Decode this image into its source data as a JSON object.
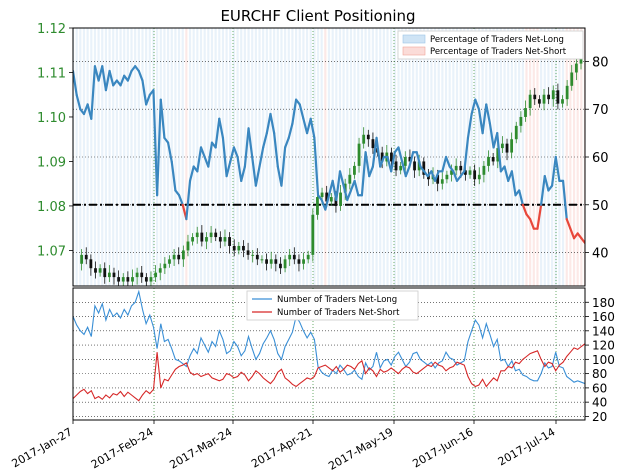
{
  "chart_data": {
    "title": "EURCHF Client Positioning",
    "type": "line",
    "x_ticks": [
      "2017-Jan-27",
      "2017-Feb-24",
      "2017-Mar-24",
      "2017-Apr-21",
      "2017-May-19",
      "2017-Jun-16",
      "2017-Jul-14"
    ],
    "top_panel": {
      "price_axis": {
        "ylim": [
          1.062,
          1.12
        ],
        "ticks": [
          "1.07",
          "1.08",
          "1.09",
          "1.10",
          "1.11",
          "1.12"
        ]
      },
      "percent_axis": {
        "ylim": [
          33,
          87
        ],
        "ticks": [
          "40",
          "50",
          "60",
          "70",
          "80"
        ]
      },
      "reference_line": 50,
      "legend": {
        "position": "top-right",
        "items": [
          "Percentage of Traders Net-Long",
          "Percentage of Traders Net-Short"
        ]
      },
      "colors": {
        "long": "#3a87c0",
        "short": "#e8473a",
        "long_fill": "#cfe4f5",
        "short_fill": "#fbdcd8",
        "up_candle": "#2e8b2e",
        "down_candle": "#111111",
        "price_axis": "#2e8b2e"
      },
      "series": [
        {
          "name": "Percentage of Traders Net-Long",
          "values": [
            78,
            73,
            70,
            69,
            71,
            68,
            79,
            76,
            79,
            74,
            78,
            75,
            76,
            75,
            77,
            76,
            78,
            79,
            78,
            76,
            71,
            73,
            74,
            52,
            72,
            64,
            63,
            59,
            53,
            52,
            50,
            47,
            55,
            58,
            57,
            62,
            60,
            58,
            63,
            62,
            68,
            64,
            56,
            59,
            62,
            60,
            55,
            58,
            66,
            60,
            54,
            58,
            62,
            65,
            69,
            65,
            58,
            54,
            62,
            64,
            67,
            72,
            71,
            68,
            65,
            68,
            64,
            52,
            51,
            49,
            52,
            55,
            51,
            57,
            54,
            51,
            53,
            55,
            52,
            52,
            61,
            56,
            58,
            64,
            58,
            60,
            60,
            57,
            61,
            62,
            59,
            56,
            58,
            61,
            61,
            58,
            57,
            56,
            57,
            55,
            57,
            57,
            60,
            58,
            57,
            55,
            56,
            57,
            64,
            69,
            72,
            70,
            65,
            71,
            67,
            62,
            65,
            57,
            58,
            55,
            57,
            52,
            53,
            50,
            48,
            47,
            45,
            45,
            50,
            56,
            53,
            54,
            60,
            55,
            55,
            47,
            45,
            43,
            44,
            43,
            42
          ],
          "ylim_panel": "percent_axis"
        }
      ],
      "price_path": [
        1.067,
        1.069,
        1.068,
        1.066,
        1.065,
        1.066,
        1.064,
        1.065,
        1.064,
        1.063,
        1.064,
        1.063,
        1.064,
        1.065,
        1.064,
        1.063,
        1.064,
        1.065,
        1.066,
        1.067,
        1.068,
        1.069,
        1.068,
        1.07,
        1.072,
        1.073,
        1.074,
        1.072,
        1.073,
        1.074,
        1.073,
        1.072,
        1.073,
        1.071,
        1.07,
        1.071,
        1.07,
        1.069,
        1.069,
        1.068,
        1.068,
        1.067,
        1.068,
        1.067,
        1.066,
        1.068,
        1.069,
        1.068,
        1.067,
        1.068,
        1.069,
        1.078,
        1.082,
        1.083,
        1.081,
        1.082,
        1.08,
        1.083,
        1.085,
        1.087,
        1.089,
        1.094,
        1.096,
        1.095,
        1.093,
        1.092,
        1.09,
        1.092,
        1.09,
        1.088,
        1.089,
        1.091,
        1.09,
        1.088,
        1.09,
        1.087,
        1.086,
        1.087,
        1.085,
        1.086,
        1.087,
        1.088,
        1.089,
        1.088,
        1.087,
        1.088,
        1.086,
        1.087,
        1.089,
        1.091,
        1.09,
        1.093,
        1.094,
        1.092,
        1.095,
        1.098,
        1.1,
        1.102,
        1.105,
        1.104,
        1.103,
        1.105,
        1.104,
        1.106,
        1.103,
        1.104,
        1.107,
        1.11,
        1.112,
        1.114
      ]
    },
    "bottom_panel": {
      "ylim": [
        15,
        200
      ],
      "ticks": [
        "20",
        "40",
        "60",
        "80",
        "100",
        "120",
        "140",
        "160",
        "180"
      ],
      "legend": {
        "position": "top-center",
        "items": [
          "Number of Traders Net-Long",
          "Number of Traders Net-Short"
        ]
      },
      "series": [
        {
          "name": "Number of Traders Net-Long",
          "values": [
            160,
            148,
            140,
            135,
            145,
            132,
            175,
            165,
            178,
            155,
            170,
            160,
            165,
            158,
            170,
            162,
            175,
            180,
            195,
            170,
            150,
            162,
            145,
            115,
            150,
            125,
            128,
            115,
            100,
            98,
            94,
            90,
            105,
            115,
            108,
            130,
            120,
            110,
            125,
            118,
            140,
            128,
            108,
            112,
            125,
            118,
            105,
            112,
            132,
            115,
            100,
            108,
            122,
            130,
            140,
            128,
            108,
            100,
            118,
            128,
            138,
            160,
            152,
            140,
            130,
            138,
            128,
            90,
            82,
            78,
            76,
            85,
            80,
            92,
            86,
            78,
            80,
            85,
            76,
            72,
            95,
            85,
            90,
            110,
            88,
            98,
            100,
            92,
            104,
            110,
            100,
            90,
            96,
            108,
            110,
            100,
            96,
            92,
            96,
            88,
            95,
            98,
            110,
            102,
            100,
            92,
            95,
            98,
            125,
            140,
            155,
            148,
            130,
            150,
            135,
            118,
            128,
            98,
            100,
            90,
            98,
            84,
            86,
            78,
            76,
            72,
            70,
            70,
            80,
            95,
            88,
            90,
            110,
            90,
            88,
            76,
            72,
            68,
            70,
            68,
            66
          ],
          "color": "#3a8fd6"
        },
        {
          "name": "Number of Traders Net-Short",
          "values": [
            45,
            50,
            55,
            58,
            52,
            56,
            45,
            48,
            44,
            50,
            46,
            52,
            50,
            55,
            48,
            54,
            50,
            46,
            42,
            50,
            56,
            52,
            58,
            110,
            60,
            72,
            70,
            78,
            86,
            90,
            92,
            95,
            82,
            78,
            80,
            76,
            78,
            80,
            74,
            72,
            70,
            72,
            80,
            78,
            74,
            76,
            82,
            78,
            70,
            76,
            84,
            80,
            74,
            70,
            66,
            72,
            82,
            86,
            74,
            70,
            65,
            62,
            66,
            70,
            74,
            72,
            76,
            88,
            90,
            92,
            88,
            84,
            90,
            82,
            86,
            92,
            90,
            86,
            94,
            98,
            80,
            88,
            84,
            76,
            86,
            82,
            84,
            88,
            84,
            80,
            86,
            90,
            88,
            82,
            80,
            84,
            88,
            92,
            90,
            96,
            92,
            90,
            84,
            88,
            90,
            96,
            94,
            92,
            76,
            66,
            62,
            64,
            72,
            62,
            68,
            74,
            70,
            84,
            84,
            90,
            88,
            96,
            94,
            100,
            104,
            108,
            110,
            112,
            100,
            90,
            96,
            94,
            84,
            92,
            96,
            104,
            110,
            116,
            114,
            118,
            122
          ],
          "color": "#d62828"
        }
      ]
    }
  }
}
